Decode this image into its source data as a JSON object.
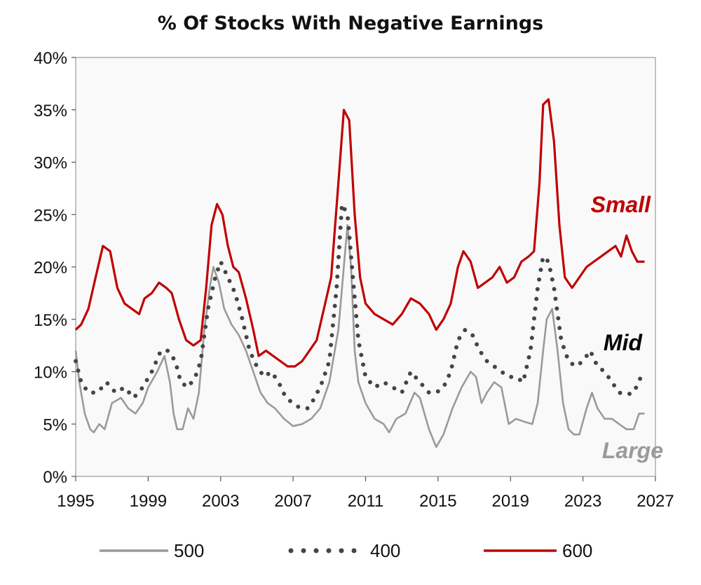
{
  "chart_data": {
    "type": "line",
    "title": "% Of Stocks With Negative Earnings",
    "xlabel": "",
    "ylabel": "",
    "xlim": [
      1995,
      2027
    ],
    "ylim": [
      0,
      40
    ],
    "x_ticks": [
      "1995",
      "1999",
      "2003",
      "2007",
      "2011",
      "2015",
      "2019",
      "2023",
      "2027"
    ],
    "y_ticks": [
      "0%",
      "5%",
      "10%",
      "15%",
      "20%",
      "25%",
      "30%",
      "35%",
      "40%"
    ],
    "grid": false,
    "legend_position": "bottom",
    "annotations": [
      {
        "text": "Small",
        "series": "600",
        "color": "#c00000"
      },
      {
        "text": "Mid",
        "series": "400",
        "color": "#000000"
      },
      {
        "text": "Large",
        "series": "500",
        "color": "#9a9a9a"
      }
    ],
    "series": [
      {
        "name": "500",
        "style": "solid",
        "color": "#9a9a9a",
        "points": [
          [
            1995.0,
            12.0
          ],
          [
            1995.2,
            9.0
          ],
          [
            1995.5,
            6.0
          ],
          [
            1995.8,
            4.5
          ],
          [
            1996.0,
            4.2
          ],
          [
            1996.3,
            5.0
          ],
          [
            1996.6,
            4.5
          ],
          [
            1997.0,
            7.0
          ],
          [
            1997.5,
            7.5
          ],
          [
            1997.9,
            6.5
          ],
          [
            1998.3,
            6.0
          ],
          [
            1998.7,
            7.0
          ],
          [
            1999.0,
            8.5
          ],
          [
            1999.5,
            10.0
          ],
          [
            1999.9,
            11.5
          ],
          [
            2000.2,
            9.0
          ],
          [
            2000.4,
            6.0
          ],
          [
            2000.6,
            4.5
          ],
          [
            2000.9,
            4.5
          ],
          [
            2001.2,
            6.5
          ],
          [
            2001.5,
            5.5
          ],
          [
            2001.8,
            8.0
          ],
          [
            2002.1,
            14.0
          ],
          [
            2002.4,
            18.0
          ],
          [
            2002.6,
            20.0
          ],
          [
            2002.9,
            18.5
          ],
          [
            2003.2,
            16.0
          ],
          [
            2003.6,
            14.5
          ],
          [
            2004.0,
            13.5
          ],
          [
            2004.4,
            12.0
          ],
          [
            2004.8,
            10.0
          ],
          [
            2005.2,
            8.0
          ],
          [
            2005.6,
            7.0
          ],
          [
            2006.0,
            6.5
          ],
          [
            2006.5,
            5.5
          ],
          [
            2007.0,
            4.8
          ],
          [
            2007.5,
            5.0
          ],
          [
            2008.0,
            5.5
          ],
          [
            2008.5,
            6.5
          ],
          [
            2009.0,
            9.0
          ],
          [
            2009.5,
            14.0
          ],
          [
            2009.8,
            20.0
          ],
          [
            2010.0,
            24.0
          ],
          [
            2010.2,
            20.0
          ],
          [
            2010.4,
            12.0
          ],
          [
            2010.6,
            9.0
          ],
          [
            2011.0,
            7.0
          ],
          [
            2011.5,
            5.5
          ],
          [
            2012.0,
            5.0
          ],
          [
            2012.3,
            4.2
          ],
          [
            2012.7,
            5.5
          ],
          [
            2013.2,
            6.0
          ],
          [
            2013.7,
            8.0
          ],
          [
            2014.0,
            7.5
          ],
          [
            2014.5,
            4.5
          ],
          [
            2014.9,
            2.8
          ],
          [
            2015.3,
            4.0
          ],
          [
            2015.8,
            6.5
          ],
          [
            2016.3,
            8.5
          ],
          [
            2016.8,
            10.0
          ],
          [
            2017.1,
            9.5
          ],
          [
            2017.4,
            7.0
          ],
          [
            2017.7,
            8.0
          ],
          [
            2018.1,
            9.0
          ],
          [
            2018.5,
            8.5
          ],
          [
            2018.9,
            5.0
          ],
          [
            2019.3,
            5.5
          ],
          [
            2019.8,
            5.2
          ],
          [
            2020.2,
            5.0
          ],
          [
            2020.5,
            7.0
          ],
          [
            2020.8,
            12.0
          ],
          [
            2021.0,
            15.0
          ],
          [
            2021.3,
            16.0
          ],
          [
            2021.6,
            12.0
          ],
          [
            2021.9,
            7.0
          ],
          [
            2022.2,
            4.5
          ],
          [
            2022.5,
            4.0
          ],
          [
            2022.8,
            4.0
          ],
          [
            2023.2,
            6.5
          ],
          [
            2023.5,
            8.0
          ],
          [
            2023.8,
            6.5
          ],
          [
            2024.2,
            5.5
          ],
          [
            2024.6,
            5.5
          ],
          [
            2025.0,
            5.0
          ],
          [
            2025.4,
            4.5
          ],
          [
            2025.8,
            4.5
          ],
          [
            2026.1,
            6.0
          ],
          [
            2026.4,
            6.0
          ]
        ]
      },
      {
        "name": "400",
        "style": "dotted",
        "color": "#454545",
        "points": [
          [
            1995.0,
            11.0
          ],
          [
            1995.3,
            9.0
          ],
          [
            1995.7,
            8.0
          ],
          [
            1996.2,
            8.0
          ],
          [
            1996.7,
            9.0
          ],
          [
            1997.2,
            8.0
          ],
          [
            1997.7,
            8.5
          ],
          [
            1998.2,
            7.5
          ],
          [
            1998.7,
            8.5
          ],
          [
            1999.2,
            10.0
          ],
          [
            1999.7,
            12.0
          ],
          [
            2000.1,
            12.0
          ],
          [
            2000.5,
            11.0
          ],
          [
            2000.8,
            9.0
          ],
          [
            2001.2,
            8.5
          ],
          [
            2001.6,
            9.5
          ],
          [
            2001.9,
            11.0
          ],
          [
            2002.3,
            16.0
          ],
          [
            2002.7,
            19.0
          ],
          [
            2003.0,
            20.5
          ],
          [
            2003.4,
            19.0
          ],
          [
            2003.8,
            17.5
          ],
          [
            2004.2,
            15.0
          ],
          [
            2004.6,
            12.0
          ],
          [
            2005.0,
            10.5
          ],
          [
            2005.4,
            9.5
          ],
          [
            2005.8,
            10.0
          ],
          [
            2006.2,
            9.0
          ],
          [
            2006.6,
            7.5
          ],
          [
            2007.0,
            7.0
          ],
          [
            2007.4,
            6.5
          ],
          [
            2007.8,
            6.5
          ],
          [
            2008.2,
            7.5
          ],
          [
            2008.6,
            9.0
          ],
          [
            2009.0,
            11.0
          ],
          [
            2009.4,
            18.0
          ],
          [
            2009.7,
            26.0
          ],
          [
            2010.0,
            25.0
          ],
          [
            2010.3,
            19.0
          ],
          [
            2010.6,
            13.0
          ],
          [
            2011.0,
            9.5
          ],
          [
            2011.5,
            8.5
          ],
          [
            2012.0,
            9.0
          ],
          [
            2012.5,
            8.5
          ],
          [
            2013.0,
            8.0
          ],
          [
            2013.5,
            10.0
          ],
          [
            2014.0,
            9.0
          ],
          [
            2014.5,
            8.0
          ],
          [
            2014.9,
            8.0
          ],
          [
            2015.3,
            8.5
          ],
          [
            2015.7,
            10.0
          ],
          [
            2016.1,
            13.0
          ],
          [
            2016.5,
            14.0
          ],
          [
            2016.9,
            13.5
          ],
          [
            2017.3,
            12.0
          ],
          [
            2017.7,
            11.0
          ],
          [
            2018.1,
            10.5
          ],
          [
            2018.5,
            10.0
          ],
          [
            2018.9,
            9.5
          ],
          [
            2019.3,
            9.5
          ],
          [
            2019.7,
            9.0
          ],
          [
            2020.1,
            12.0
          ],
          [
            2020.5,
            18.0
          ],
          [
            2020.8,
            21.0
          ],
          [
            2021.1,
            20.5
          ],
          [
            2021.4,
            18.0
          ],
          [
            2021.8,
            13.0
          ],
          [
            2022.2,
            11.0
          ],
          [
            2022.6,
            10.5
          ],
          [
            2023.0,
            11.0
          ],
          [
            2023.4,
            12.0
          ],
          [
            2023.8,
            10.5
          ],
          [
            2024.2,
            10.0
          ],
          [
            2024.6,
            9.0
          ],
          [
            2025.0,
            8.0
          ],
          [
            2025.4,
            7.8
          ],
          [
            2025.8,
            8.0
          ],
          [
            2026.2,
            9.5
          ]
        ]
      },
      {
        "name": "600",
        "style": "solid",
        "color": "#c00000",
        "points": [
          [
            1995.0,
            14.0
          ],
          [
            1995.3,
            14.5
          ],
          [
            1995.7,
            16.0
          ],
          [
            1996.1,
            19.0
          ],
          [
            1996.5,
            22.0
          ],
          [
            1996.9,
            21.5
          ],
          [
            1997.3,
            18.0
          ],
          [
            1997.7,
            16.5
          ],
          [
            1998.1,
            16.0
          ],
          [
            1998.5,
            15.5
          ],
          [
            1998.8,
            17.0
          ],
          [
            1999.2,
            17.5
          ],
          [
            1999.6,
            18.5
          ],
          [
            2000.0,
            18.0
          ],
          [
            2000.3,
            17.5
          ],
          [
            2000.7,
            15.0
          ],
          [
            2001.1,
            13.0
          ],
          [
            2001.5,
            12.5
          ],
          [
            2001.9,
            13.0
          ],
          [
            2002.2,
            18.0
          ],
          [
            2002.5,
            24.0
          ],
          [
            2002.8,
            26.0
          ],
          [
            2003.1,
            25.0
          ],
          [
            2003.4,
            22.0
          ],
          [
            2003.7,
            20.0
          ],
          [
            2004.0,
            19.5
          ],
          [
            2004.4,
            17.0
          ],
          [
            2004.8,
            14.0
          ],
          [
            2005.1,
            11.5
          ],
          [
            2005.5,
            12.0
          ],
          [
            2005.9,
            11.5
          ],
          [
            2006.3,
            11.0
          ],
          [
            2006.7,
            10.5
          ],
          [
            2007.1,
            10.5
          ],
          [
            2007.5,
            11.0
          ],
          [
            2007.9,
            12.0
          ],
          [
            2008.3,
            13.0
          ],
          [
            2008.7,
            16.0
          ],
          [
            2009.1,
            19.0
          ],
          [
            2009.5,
            28.0
          ],
          [
            2009.8,
            35.0
          ],
          [
            2010.1,
            34.0
          ],
          [
            2010.4,
            25.0
          ],
          [
            2010.7,
            19.0
          ],
          [
            2011.0,
            16.5
          ],
          [
            2011.5,
            15.5
          ],
          [
            2012.0,
            15.0
          ],
          [
            2012.5,
            14.5
          ],
          [
            2013.0,
            15.5
          ],
          [
            2013.5,
            17.0
          ],
          [
            2014.0,
            16.5
          ],
          [
            2014.5,
            15.5
          ],
          [
            2014.9,
            14.0
          ],
          [
            2015.3,
            15.0
          ],
          [
            2015.7,
            16.5
          ],
          [
            2016.1,
            20.0
          ],
          [
            2016.4,
            21.5
          ],
          [
            2016.8,
            20.5
          ],
          [
            2017.2,
            18.0
          ],
          [
            2017.6,
            18.5
          ],
          [
            2018.0,
            19.0
          ],
          [
            2018.4,
            20.0
          ],
          [
            2018.8,
            18.5
          ],
          [
            2019.2,
            19.0
          ],
          [
            2019.6,
            20.5
          ],
          [
            2020.0,
            21.0
          ],
          [
            2020.3,
            21.5
          ],
          [
            2020.6,
            28.0
          ],
          [
            2020.8,
            35.5
          ],
          [
            2021.1,
            36.0
          ],
          [
            2021.4,
            32.0
          ],
          [
            2021.7,
            24.0
          ],
          [
            2022.0,
            19.0
          ],
          [
            2022.4,
            18.0
          ],
          [
            2022.8,
            19.0
          ],
          [
            2023.2,
            20.0
          ],
          [
            2023.6,
            20.5
          ],
          [
            2024.0,
            21.0
          ],
          [
            2024.4,
            21.5
          ],
          [
            2024.8,
            22.0
          ],
          [
            2025.1,
            21.0
          ],
          [
            2025.4,
            23.0
          ],
          [
            2025.7,
            21.5
          ],
          [
            2026.0,
            20.5
          ],
          [
            2026.4,
            20.5
          ]
        ]
      }
    ]
  }
}
